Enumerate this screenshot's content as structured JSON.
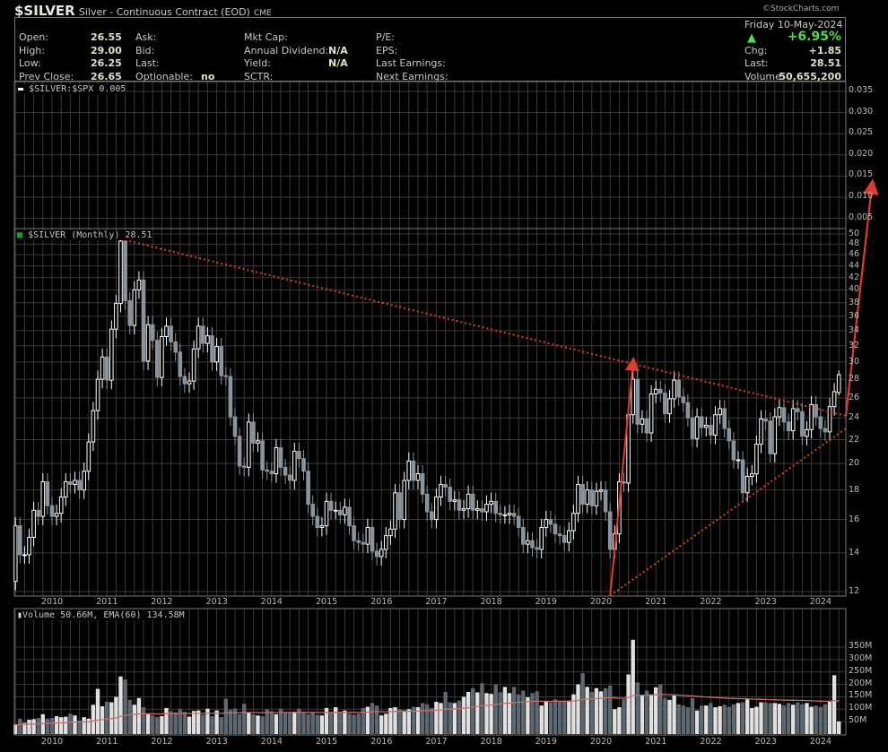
{
  "header": {
    "symbol": "$SILVER",
    "description": "Silver - Continuous Contract (EOD)",
    "exchange": "CME",
    "copyright": "©StockCharts.com"
  },
  "quote": {
    "open_label": "Open:",
    "open": "26.55",
    "high_label": "High:",
    "high": "29.00",
    "low_label": "Low:",
    "low": "26.25",
    "prev_close_label": "Prev Close:",
    "prev_close": "26.65",
    "ask_label": "Ask:",
    "bid_label": "Bid:",
    "last_label_mid": "Last:",
    "optionable_label": "Optionable:",
    "optionable": "no",
    "mkt_cap_label": "Mkt Cap:",
    "annual_dividend_label": "Annual Dividend:",
    "annual_dividend": "N/A",
    "yield_label": "Yield:",
    "yield": "N/A",
    "sctr_label": "SCTR:",
    "pe_label": "P/E:",
    "eps_label": "EPS:",
    "last_earnings_label": "Last Earnings:",
    "next_earnings_label": "Next Earnings:",
    "date": "Friday  10-May-2024",
    "pct_change": "+6.95%",
    "chg_label": "Chg:",
    "chg": "+1.85",
    "last_label": "Last:",
    "last": "28.51",
    "volume_label": "Volume:",
    "volume": "50,655,200",
    "up_color": "#4ddc4d"
  },
  "chart_data": {
    "type": "candlestick",
    "panels": {
      "ratio": {
        "legend": "$SILVER:$SPX 0.005",
        "ticks": [
          "0.035",
          "0.030",
          "0.025",
          "0.020",
          "0.015",
          "0.010",
          "0.005"
        ],
        "ylim": [
          0.0,
          0.037
        ]
      },
      "price": {
        "legend": "$SILVER (Monthly) 28.51",
        "scale": "log",
        "ylim": [
          11.5,
          51
        ],
        "ticks": [
          12,
          14,
          16,
          18,
          20,
          22,
          24,
          26,
          28,
          30,
          32,
          34,
          36,
          38,
          40,
          42,
          44,
          46,
          48,
          50
        ]
      },
      "volume": {
        "legend": "Volume 50.66M, EMA(60) 134.58M",
        "ema_period": 60,
        "ticks": [
          "50M",
          "100M",
          "150M",
          "200M",
          "250M",
          "300M",
          "350M"
        ]
      }
    },
    "x_ticks": [
      "2010",
      "2011",
      "2012",
      "2013",
      "2014",
      "2015",
      "2016",
      "2017",
      "2018",
      "2019",
      "2020",
      "2021",
      "2022",
      "2023",
      "2024"
    ],
    "start_month": "2009-05",
    "first_open": 12.5,
    "close": [
      15.6,
      13.9,
      13.9,
      14.9,
      16.6,
      16.2,
      18.6,
      16.9,
      16.2,
      16.4,
      17.5,
      18.6,
      18.4,
      18.7,
      18.0,
      19.4,
      21.8,
      24.7,
      28.0,
      30.6,
      27.9,
      34.2,
      37.9,
      48.6,
      38.3,
      34.7,
      40.0,
      41.6,
      30.1,
      34.8,
      32.7,
      28.2,
      33.2,
      34.6,
      32.5,
      31.2,
      28.3,
      27.5,
      27.8,
      31.6,
      34.6,
      32.3,
      33.3,
      30.0,
      31.9,
      28.4,
      28.3,
      24.1,
      22.3,
      19.8,
      19.7,
      23.6,
      21.7,
      21.9,
      19.5,
      19.4,
      19.2,
      21.3,
      19.7,
      19.1,
      18.7,
      21.0,
      20.4,
      19.4,
      17.0,
      16.2,
      15.5,
      15.6,
      17.2,
      16.6,
      16.6,
      16.3,
      16.8,
      15.6,
      14.7,
      14.6,
      14.5,
      15.5,
      14.1,
      13.8,
      14.2,
      15.0,
      15.4,
      17.8,
      16.0,
      18.7,
      20.2,
      18.7,
      19.2,
      17.7,
      16.5,
      16.0,
      17.5,
      18.4,
      18.2,
      17.2,
      17.3,
      16.6,
      16.7,
      17.7,
      16.6,
      16.7,
      16.5,
      17.0,
      17.2,
      16.4,
      16.3,
      16.3,
      16.4,
      16.2,
      15.5,
      14.5,
      14.7,
      14.3,
      14.2,
      15.5,
      16.0,
      15.7,
      15.1,
      15.0,
      14.6,
      15.3,
      16.4,
      18.4,
      17.0,
      18.0,
      16.9,
      17.9,
      18.0,
      16.5,
      14.2,
      15.1,
      18.6,
      18.5,
      24.3,
      28.0,
      23.4,
      23.9,
      22.6,
      26.4,
      26.9,
      26.5,
      24.4,
      25.9,
      27.9,
      26.1,
      25.5,
      24.0,
      22.1,
      24.1,
      23.1,
      23.3,
      22.4,
      24.3,
      24.9,
      23.0,
      21.9,
      20.3,
      20.3,
      17.8,
      19.0,
      19.2,
      21.6,
      23.9,
      23.7,
      20.8,
      24.1,
      25.0,
      23.6,
      22.8,
      24.9,
      24.6,
      22.3,
      22.9,
      25.3,
      24.1,
      23.0,
      22.7,
      25.1,
      26.65,
      28.51
    ],
    "last_bar": {
      "open": 26.55,
      "high": 29.0,
      "low": 26.25,
      "close": 28.51
    },
    "volume_millions": [
      38,
      62,
      45,
      58,
      60,
      65,
      80,
      62,
      65,
      72,
      68,
      70,
      82,
      75,
      55,
      68,
      62,
      118,
      182,
      112,
      130,
      128,
      150,
      232,
      220,
      138,
      118,
      145,
      108,
      80,
      75,
      68,
      72,
      105,
      92,
      88,
      100,
      90,
      70,
      93,
      95,
      78,
      102,
      72,
      95,
      68,
      142,
      98,
      103,
      80,
      122,
      85,
      80,
      75,
      72,
      100,
      92,
      80,
      102,
      86,
      88,
      90,
      102,
      88,
      80,
      85,
      78,
      75,
      105,
      85,
      108,
      85,
      95,
      82,
      78,
      82,
      105,
      110,
      125,
      115,
      75,
      82,
      105,
      108,
      100,
      95,
      100,
      110,
      108,
      125,
      120,
      105,
      130,
      125,
      170,
      128,
      125,
      135,
      150,
      170,
      185,
      168,
      205,
      165,
      162,
      200,
      168,
      190,
      165,
      190,
      160,
      175,
      148,
      165,
      172,
      115,
      130,
      128,
      140,
      135,
      130,
      135,
      160,
      200,
      245,
      190,
      170,
      185,
      172,
      185,
      195,
      100,
      108,
      140,
      240,
      380,
      208,
      155,
      175,
      160,
      188,
      200,
      145,
      138,
      155,
      120,
      115,
      108,
      145,
      95,
      115,
      115,
      125,
      108,
      112,
      118,
      110,
      120,
      125,
      128,
      140,
      105,
      110,
      128,
      128,
      125,
      125,
      122,
      115,
      125,
      118,
      128,
      120,
      125,
      110,
      115,
      110,
      120,
      130,
      237,
      50.66
    ],
    "annotations": [
      {
        "type": "dotted-trendline",
        "from": [
          "2011-04",
          49.0
        ],
        "to": [
          "2024-05",
          24.2
        ]
      },
      {
        "type": "dotted-trendline",
        "from": [
          "2020-03",
          11.8
        ],
        "to": [
          "2024-05",
          23.0
        ]
      },
      {
        "type": "arrow",
        "from": [
          "2020-03",
          11.8
        ],
        "to": [
          "2020-08",
          29.8
        ]
      }
    ],
    "colors": {
      "up_body": "#000000",
      "up_border": "#ffffff",
      "down_body": "#8a949c",
      "vol_up": "#e0e0e0",
      "vol_down": "#5e6870",
      "ema": "#d06a6a",
      "trend": "#e03a2a",
      "grid": "#3a3a3a"
    }
  }
}
